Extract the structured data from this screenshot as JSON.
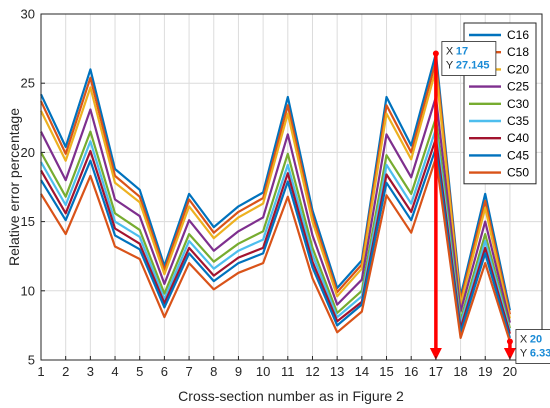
{
  "chart_data": {
    "type": "line",
    "xlabel": "Cross-section number as in Figure 2",
    "ylabel": "Relative error percentage",
    "xlim": [
      1,
      21.3
    ],
    "ylim": [
      5,
      30
    ],
    "xticks": [
      1,
      2,
      3,
      4,
      5,
      6,
      7,
      8,
      9,
      10,
      11,
      12,
      13,
      14,
      15,
      16,
      17,
      18,
      19,
      20
    ],
    "yticks": [
      5,
      10,
      15,
      20,
      25,
      30
    ],
    "grid": true,
    "legend_position": "top-right",
    "x": [
      1,
      2,
      3,
      4,
      5,
      6,
      7,
      8,
      9,
      10,
      11,
      12,
      13,
      14,
      15,
      16,
      17,
      18,
      19,
      20
    ],
    "series": [
      {
        "name": "C16",
        "color": "#0072BD",
        "values": [
          24.2,
          20.4,
          26.0,
          18.8,
          17.3,
          11.8,
          17.0,
          14.6,
          16.1,
          17.1,
          24.0,
          15.8,
          10.2,
          12.2,
          24.0,
          20.5,
          27.145,
          9.6,
          17.0,
          8.6
        ]
      },
      {
        "name": "C18",
        "color": "#D95319",
        "values": [
          23.7,
          19.9,
          25.4,
          18.3,
          16.8,
          11.5,
          16.6,
          14.2,
          15.7,
          16.7,
          23.4,
          15.4,
          9.9,
          11.9,
          23.4,
          20.0,
          26.6,
          9.3,
          16.5,
          8.3
        ]
      },
      {
        "name": "C20",
        "color": "#EDB120",
        "values": [
          23.0,
          19.4,
          24.7,
          17.8,
          16.4,
          11.2,
          16.1,
          13.8,
          15.3,
          16.3,
          22.8,
          15.0,
          9.6,
          11.6,
          22.8,
          19.5,
          26.0,
          9.0,
          16.0,
          8.0
        ]
      },
      {
        "name": "C25",
        "color": "#7E2F8E",
        "values": [
          21.5,
          18.0,
          23.1,
          16.6,
          15.4,
          10.5,
          15.1,
          12.9,
          14.3,
          15.3,
          21.3,
          14.0,
          9.0,
          10.8,
          21.3,
          18.2,
          24.0,
          8.5,
          15.0,
          7.7
        ]
      },
      {
        "name": "C30",
        "color": "#77AC30",
        "values": [
          20.0,
          16.8,
          21.5,
          15.6,
          14.4,
          9.8,
          14.1,
          12.1,
          13.4,
          14.3,
          19.9,
          13.1,
          8.4,
          10.0,
          19.8,
          17.0,
          22.5,
          7.9,
          14.1,
          7.3
        ]
      },
      {
        "name": "C35",
        "color": "#4DBEEE",
        "values": [
          19.3,
          16.2,
          20.8,
          15.0,
          13.9,
          9.4,
          13.6,
          11.6,
          12.9,
          13.7,
          19.1,
          12.6,
          8.1,
          9.6,
          19.1,
          16.3,
          21.7,
          7.6,
          13.6,
          7.1
        ]
      },
      {
        "name": "C40",
        "color": "#A2142F",
        "values": [
          18.7,
          15.6,
          20.1,
          14.5,
          13.4,
          9.1,
          13.1,
          11.1,
          12.4,
          13.1,
          18.5,
          12.1,
          7.8,
          9.2,
          18.4,
          15.7,
          21.0,
          7.3,
          13.1,
          6.9
        ]
      },
      {
        "name": "C45",
        "color": "#0072BD",
        "values": [
          18.0,
          15.1,
          19.4,
          14.0,
          13.0,
          8.8,
          12.7,
          10.7,
          12.0,
          12.7,
          17.9,
          11.7,
          7.5,
          9.0,
          17.8,
          15.1,
          20.3,
          7.0,
          12.7,
          6.6
        ]
      },
      {
        "name": "C50",
        "color": "#D95319",
        "values": [
          17.0,
          14.1,
          18.3,
          13.2,
          12.3,
          8.1,
          12.0,
          10.1,
          11.3,
          12.0,
          16.8,
          10.9,
          7.0,
          8.5,
          16.9,
          14.2,
          19.6,
          6.6,
          12.0,
          6.3333
        ]
      }
    ],
    "annotations": [
      {
        "x_label": "X",
        "x_value": "17",
        "y_label": "Y",
        "y_value": "27.145",
        "x": 17,
        "y": 27.145,
        "color": "#FF0000"
      },
      {
        "x_label": "X",
        "x_value": "20",
        "y_label": "Y",
        "y_value": "6.3333",
        "x": 20,
        "y": 6.3333,
        "color": "#FF0000"
      }
    ]
  }
}
